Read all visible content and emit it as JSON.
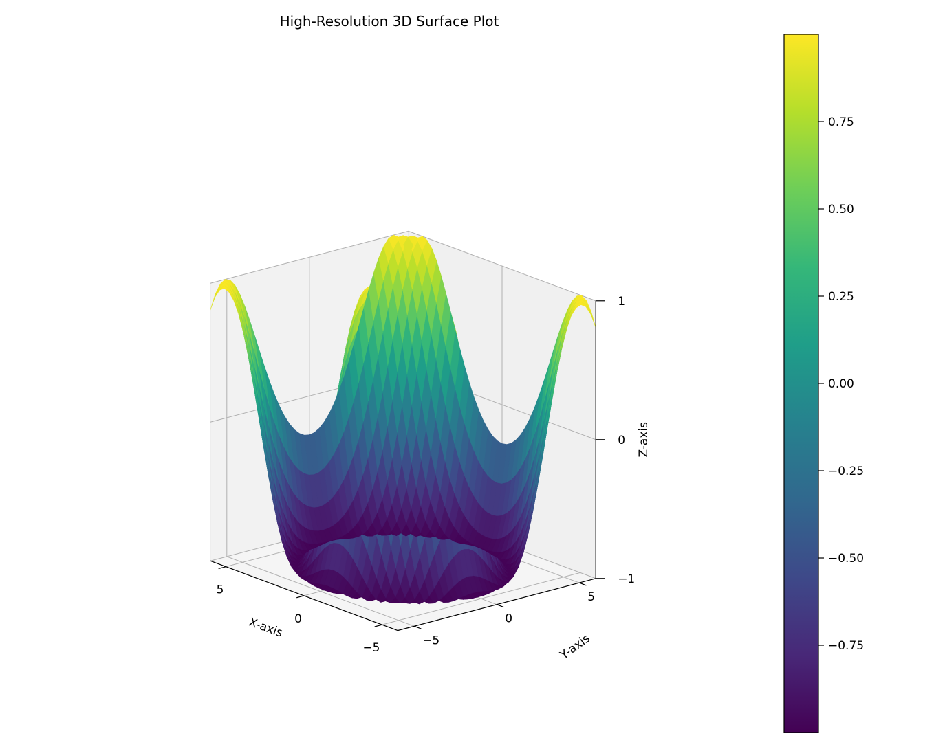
{
  "chart_data": {
    "type": "surface",
    "title": "High-Resolution 3D Surface Plot",
    "function": "z = sin(sqrt(x^2 + y^2))",
    "colormap": "viridis",
    "colormap_stops": [
      "#440154",
      "#482878",
      "#3e4989",
      "#31688e",
      "#26828e",
      "#1f9e89",
      "#35b779",
      "#6ece58",
      "#b5de2b",
      "#fde725"
    ],
    "x": {
      "label": "X-axis",
      "range": [
        -6,
        6
      ],
      "ticks": [
        -5,
        0,
        5
      ],
      "tick_labels": [
        "−5",
        "0",
        "5"
      ]
    },
    "y": {
      "label": "Y-axis",
      "range": [
        -6,
        6
      ],
      "ticks": [
        -5,
        0,
        5
      ],
      "tick_labels": [
        "−5",
        "0",
        "5"
      ]
    },
    "z": {
      "label": "Z-axis",
      "range": [
        -1,
        1
      ],
      "ticks": [
        -1,
        0,
        1
      ],
      "tick_labels": [
        "−1",
        "0",
        "1"
      ]
    },
    "colorbar": {
      "range": [
        -1,
        1
      ],
      "ticks": [
        -0.75,
        -0.5,
        -0.25,
        0,
        0.25,
        0.5,
        0.75
      ],
      "tick_labels": [
        "−0.75",
        "−0.50",
        "−0.25",
        "0.00",
        "0.25",
        "0.50",
        "0.75"
      ]
    },
    "grid": true,
    "pane_color": "#f2f2f2"
  }
}
